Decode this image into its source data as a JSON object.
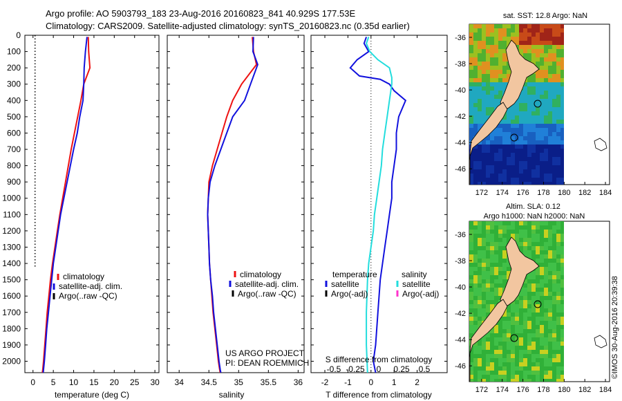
{
  "header": {
    "line1": "Argo profile: AO 5903793_183 23-Aug-2016 20160823_841 40.929S 177.53E",
    "line2": "Climatology: CARS2009. Satellite-adjusted climatology: synTS_20160823.nc (0.35d earlier)"
  },
  "stamp": "©IMOS 30-Aug-2016 20:39:38",
  "colors": {
    "climatology": "#ee1111",
    "satellite": "#1111dd",
    "argo": "#000000",
    "satellite_salinity_diff": "#22dddd",
    "argo_salinity_diff": "#ff33cc",
    "land": "#f2c6a0"
  },
  "chart_data": [
    {
      "type": "line",
      "xlabel": "temperature (deg C)",
      "ylabel": "",
      "xlim": [
        -2,
        31
      ],
      "ylim": [
        2070,
        0
      ],
      "x_ticks": [
        0,
        5,
        10,
        15,
        20,
        25,
        30
      ],
      "y_ticks": [
        0,
        100,
        200,
        300,
        400,
        500,
        600,
        700,
        800,
        900,
        1000,
        1100,
        1200,
        1300,
        1400,
        1500,
        1600,
        1700,
        1800,
        1900,
        2000
      ],
      "legend": [
        "climatology",
        "satellite-adj. clim.",
        "Argo(..raw -QC)"
      ],
      "legend_position": "bottom-left",
      "argo_dotted_line": {
        "x": 0.5,
        "depth_range": [
          0,
          1420
        ]
      },
      "series": [
        {
          "name": "climatology",
          "x": [
            13.6,
            13.7,
            14.0,
            12.5,
            11.8,
            11.0,
            10.2,
            9.4,
            8.7,
            8.0,
            7.3,
            6.6,
            6.0,
            5.4,
            4.8,
            4.3,
            3.9,
            3.5,
            3.2,
            2.9,
            2.6,
            2.4,
            2.3
          ],
          "y": [
            10,
            100,
            200,
            300,
            400,
            500,
            600,
            700,
            800,
            900,
            1000,
            1100,
            1200,
            1300,
            1400,
            1500,
            1600,
            1700,
            1800,
            1900,
            2000,
            2050,
            2070
          ]
        },
        {
          "name": "satellite-adj. clim.",
          "x": [
            13.3,
            12.9,
            12.6,
            12.5,
            12.3,
            11.5,
            10.9,
            10.0,
            9.2,
            8.4,
            7.6,
            6.8,
            6.2,
            5.6,
            5.0,
            4.6,
            4.2,
            3.8,
            3.4,
            3.1,
            2.8,
            2.6,
            2.5
          ],
          "y": [
            10,
            100,
            200,
            300,
            400,
            500,
            600,
            700,
            800,
            900,
            1000,
            1100,
            1200,
            1300,
            1400,
            1500,
            1600,
            1700,
            1800,
            1900,
            2000,
            2050,
            2070
          ]
        }
      ]
    },
    {
      "type": "line",
      "xlabel": "salinity",
      "ylabel": "",
      "xlim": [
        33.8,
        36.1
      ],
      "ylim": [
        2070,
        0
      ],
      "x_ticks": [
        34,
        34.5,
        35,
        35.5,
        36
      ],
      "legend": [
        "climatology",
        "satellite-adj. clim.",
        "Argo(..raw -QC)"
      ],
      "legend_position": "bottom-left",
      "annotation": [
        "US ARGO PROJECT",
        "PI: DEAN ROEMMICH"
      ],
      "series": [
        {
          "name": "climatology",
          "x": [
            35.23,
            35.25,
            35.3,
            35.05,
            34.9,
            34.8,
            34.72,
            34.64,
            34.56,
            34.5,
            34.49,
            34.48,
            34.49,
            34.5,
            34.51,
            34.53,
            34.55,
            34.57,
            34.6,
            34.63,
            34.66,
            34.68,
            34.69
          ],
          "y": [
            10,
            100,
            180,
            300,
            400,
            500,
            600,
            700,
            800,
            900,
            1000,
            1100,
            1200,
            1300,
            1400,
            1500,
            1600,
            1700,
            1800,
            1900,
            2000,
            2050,
            2070
          ]
        },
        {
          "name": "satellite-adj. clim.",
          "x": [
            35.25,
            35.24,
            35.32,
            35.2,
            35.1,
            34.9,
            34.8,
            34.7,
            34.6,
            34.52,
            34.49,
            34.48,
            34.49,
            34.5,
            34.51,
            34.53,
            34.56,
            34.58,
            34.61,
            34.64,
            34.67,
            34.69,
            34.7
          ],
          "y": [
            10,
            100,
            180,
            300,
            400,
            500,
            600,
            700,
            800,
            900,
            1000,
            1100,
            1200,
            1300,
            1400,
            1500,
            1600,
            1700,
            1800,
            1900,
            2000,
            2050,
            2070
          ]
        }
      ]
    },
    {
      "type": "line",
      "xlabel": "T difference from climatology",
      "ylabel": "",
      "xlim": [
        -2.6,
        3.3
      ],
      "ylim": [
        2070,
        0
      ],
      "x_ticks": [
        -2,
        -1,
        0,
        1,
        2
      ],
      "secondary_xlabel": "S difference from climatology",
      "secondary_x_ticks": [
        "-0.5",
        "-0.25",
        "0",
        "0.25",
        "0.5"
      ],
      "zero_line_dotted": true,
      "legend_groups": [
        {
          "title": "temperature",
          "entries": [
            "satellite",
            "Argo(-adj)"
          ]
        },
        {
          "title": "salinity",
          "entries": [
            "satellite",
            "Argo(-adj)"
          ]
        }
      ],
      "legend_position": "bottom-center",
      "series": [
        {
          "name": "temperature satellite",
          "x": [
            -0.2,
            -0.3,
            -0.1,
            -0.6,
            -0.9,
            -0.5,
            0.4,
            0.8,
            1.0,
            1.5,
            1.2,
            1.1,
            1.1,
            1.0,
            0.9,
            0.9,
            0.8,
            0.7,
            0.6,
            0.5,
            0.4,
            0.3,
            0.2,
            0.1,
            0.2
          ],
          "y": [
            10,
            50,
            100,
            150,
            200,
            250,
            270,
            300,
            340,
            400,
            500,
            600,
            700,
            800,
            900,
            1000,
            1100,
            1200,
            1300,
            1400,
            1500,
            1700,
            1900,
            2000,
            2070
          ]
        },
        {
          "name": "salinity satellite",
          "x": [
            -0.1,
            -0.2,
            -0.05,
            0.3,
            0.8,
            0.9,
            0.9,
            0.8,
            0.7,
            0.6,
            0.5,
            0.45,
            0.35,
            0.25,
            0.15,
            0.1,
            0.0,
            -0.1,
            -0.15,
            -0.2,
            -0.2,
            -0.15
          ],
          "y": [
            10,
            50,
            100,
            150,
            200,
            260,
            300,
            400,
            500,
            600,
            700,
            800,
            900,
            1000,
            1100,
            1200,
            1300,
            1400,
            1500,
            1700,
            1900,
            2070
          ]
        }
      ]
    },
    {
      "type": "heatmap",
      "title": "sat. SST: 12.8 Argo: NaN",
      "x_ticks": [
        172,
        174,
        176,
        178,
        180,
        182,
        184
      ],
      "y_ticks": [
        -36,
        -38,
        -40,
        -42,
        -44,
        -46
      ],
      "xlim": [
        170.8,
        184.4
      ],
      "ylim": [
        -47.2,
        -35.0
      ]
    },
    {
      "type": "heatmap",
      "title": "Altim. SLA: 0.12\nArgo h1000: NaN h2000: NaN",
      "x_ticks": [
        172,
        174,
        176,
        178,
        180,
        182,
        184
      ],
      "y_ticks": [
        -36,
        -38,
        -40,
        -42,
        -44,
        -46
      ],
      "xlim": [
        170.8,
        184.4
      ],
      "ylim": [
        -47.2,
        -35.0
      ]
    }
  ]
}
